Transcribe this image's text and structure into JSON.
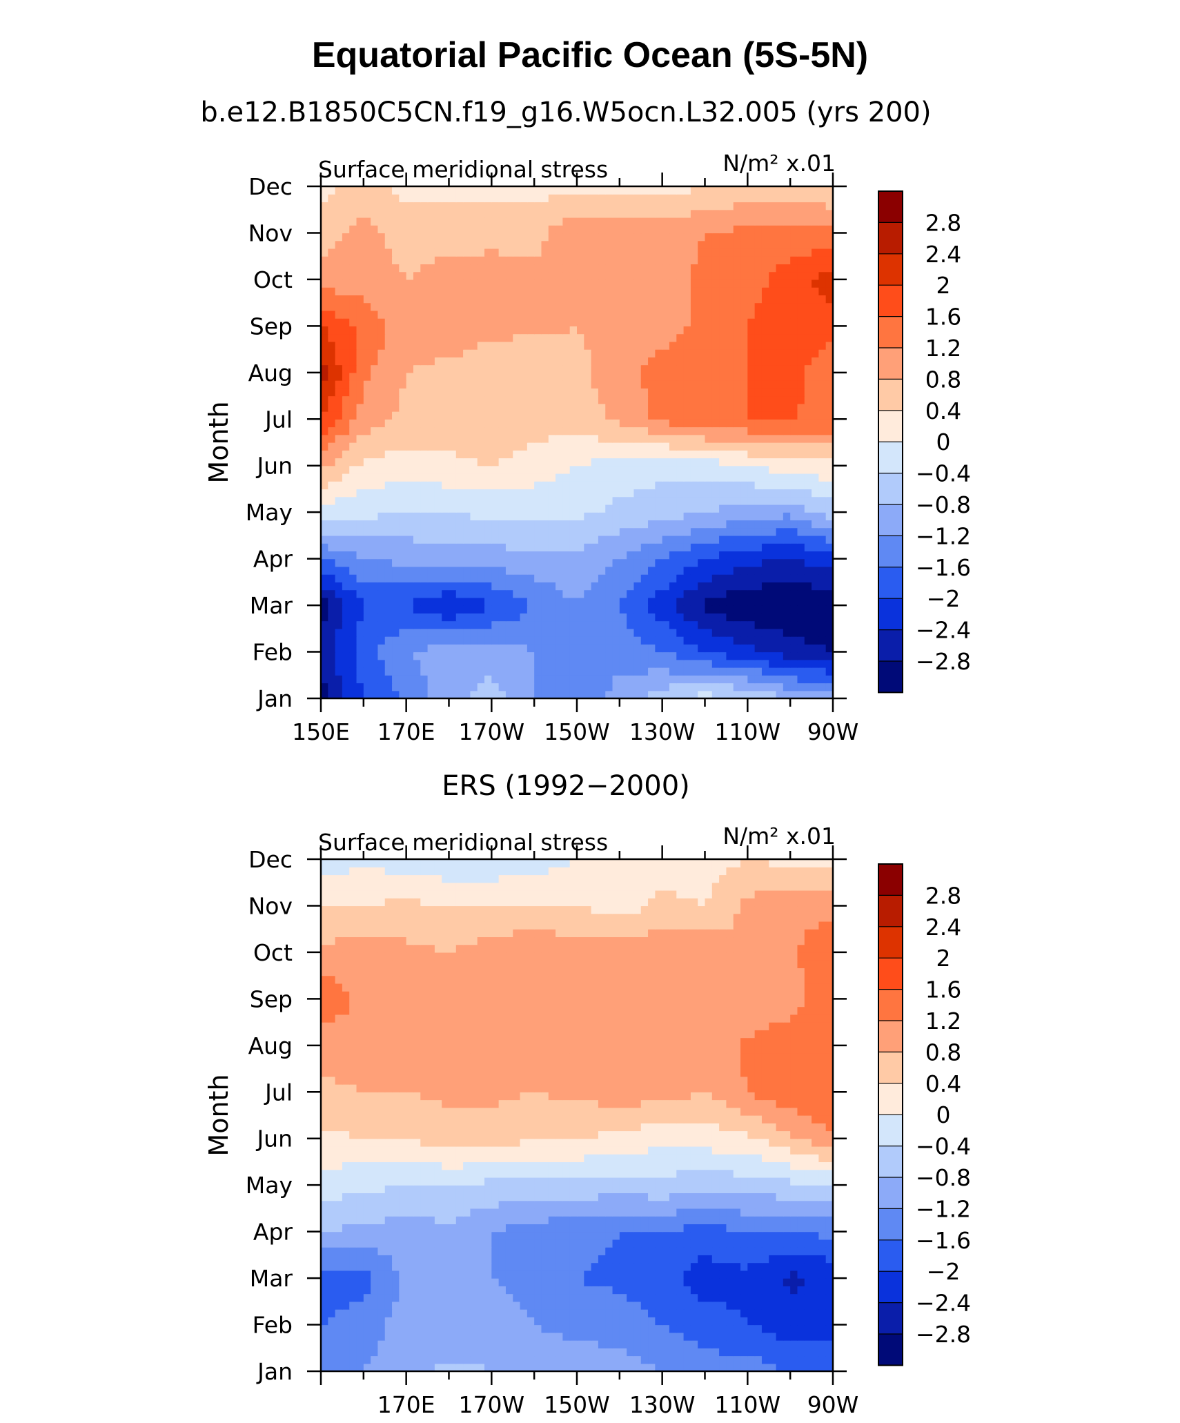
{
  "main_title": "Equatorial Pacific Ocean (5S-5N)",
  "colorbar": {
    "labels": [
      "2.8",
      "2.4",
      "2",
      "1.6",
      "1.2",
      "0.8",
      "0.4",
      "0",
      "−0.4",
      "−0.8",
      "−1.2",
      "−1.6",
      "−2",
      "−2.4",
      "−2.8"
    ],
    "colors": [
      "#8b0000",
      "#b81c00",
      "#dd3300",
      "#ff4d1a",
      "#ff7540",
      "#ffa078",
      "#ffcaa6",
      "#ffebdc",
      "#d3e6fb",
      "#b1cbfb",
      "#8caaf8",
      "#5f89f3",
      "#2a5cf0",
      "#0a32dc",
      "#0a1eaa",
      "#000a78"
    ]
  },
  "chart_data": [
    {
      "type": "heatmap",
      "title": "b.e12.B1850C5CN.f19_g16.W5ocn.L32.005 (yrs 200)",
      "left_label": "Surface meridional stress",
      "right_label": "N/m² x.01",
      "ylabel": "Month",
      "xlabel": "",
      "x_tick_labels": [
        "150E",
        "170E",
        "170W",
        "150W",
        "130W",
        "110W",
        "90W"
      ],
      "y_tick_labels": [
        "Jan",
        "Feb",
        "Mar",
        "Apr",
        "May",
        "Jun",
        "Jul",
        "Aug",
        "Sep",
        "Oct",
        "Nov",
        "Dec"
      ],
      "xlim": [
        150,
        270
      ],
      "ylim": [
        1,
        12
      ],
      "longitudes": [
        150,
        160,
        170,
        180,
        190,
        200,
        210,
        220,
        230,
        240,
        250,
        260,
        270
      ],
      "months": [
        "Jan",
        "Feb",
        "Mar",
        "Apr",
        "May",
        "Jun",
        "Jul",
        "Aug",
        "Sep",
        "Oct",
        "Nov",
        "Dec"
      ],
      "values": [
        [
          -3.0,
          -2.0,
          -1.5,
          -1.0,
          -0.6,
          -1.2,
          -1.6,
          -1.0,
          -0.6,
          -0.2,
          -0.4,
          -0.8,
          -1.0
        ],
        [
          -2.6,
          -1.8,
          -1.2,
          -1.0,
          -1.0,
          -1.2,
          -1.5,
          -1.4,
          -1.6,
          -2.0,
          -2.3,
          -2.6,
          -2.8
        ],
        [
          -3.0,
          -2.0,
          -2.0,
          -2.4,
          -2.0,
          -1.6,
          -1.2,
          -1.6,
          -2.2,
          -2.9,
          -3.1,
          -3.2,
          -3.1
        ],
        [
          -1.6,
          -1.2,
          -1.1,
          -1.0,
          -1.0,
          -0.9,
          -0.9,
          -1.2,
          -1.6,
          -2.0,
          -2.3,
          -2.4,
          -2.2
        ],
        [
          -0.2,
          -0.3,
          -0.4,
          -0.4,
          -0.3,
          -0.3,
          -0.3,
          -0.5,
          -0.6,
          -0.8,
          -1.0,
          -1.1,
          -0.6
        ],
        [
          0.9,
          0.3,
          0.2,
          0.3,
          0.4,
          0.2,
          0.0,
          -0.2,
          -0.3,
          -0.2,
          0.0,
          0.2,
          0.3
        ],
        [
          2.0,
          1.0,
          0.7,
          0.6,
          0.8,
          0.6,
          0.6,
          0.9,
          1.3,
          1.5,
          1.6,
          1.6,
          1.5
        ],
        [
          2.6,
          1.3,
          0.8,
          0.7,
          0.6,
          0.4,
          0.7,
          1.0,
          1.4,
          1.6,
          1.6,
          1.8,
          1.2
        ],
        [
          2.0,
          1.5,
          1.0,
          1.0,
          0.9,
          0.9,
          0.8,
          0.9,
          1.0,
          1.3,
          1.6,
          1.9,
          1.8
        ],
        [
          1.0,
          1.0,
          0.8,
          1.0,
          1.1,
          1.0,
          0.9,
          1.0,
          1.0,
          1.3,
          1.4,
          1.8,
          2.2
        ],
        [
          0.6,
          1.0,
          0.6,
          0.6,
          0.6,
          0.6,
          1.2,
          1.0,
          1.0,
          1.2,
          1.3,
          1.3,
          1.3
        ],
        [
          0.3,
          0.5,
          0.3,
          0.3,
          0.3,
          0.3,
          0.2,
          0.2,
          0.2,
          0.4,
          0.5,
          0.6,
          0.4
        ]
      ]
    },
    {
      "type": "heatmap",
      "title": "ERS (1992−2000)",
      "left_label": "Surface meridional stress",
      "right_label": "N/m² x.01",
      "ylabel": "Month",
      "xlabel": "",
      "x_tick_labels": [
        "170E",
        "170W",
        "150W",
        "130W",
        "110W",
        "90W"
      ],
      "y_tick_labels": [
        "Jan",
        "Feb",
        "Mar",
        "Apr",
        "May",
        "Jun",
        "Jul",
        "Aug",
        "Sep",
        "Oct",
        "Nov",
        "Dec"
      ],
      "xlim": [
        150,
        270
      ],
      "ylim": [
        1,
        12
      ],
      "longitudes": [
        150,
        160,
        170,
        180,
        190,
        200,
        210,
        220,
        230,
        240,
        250,
        260,
        270
      ],
      "months": [
        "Jan",
        "Feb",
        "Mar",
        "Apr",
        "May",
        "Jun",
        "Jul",
        "Aug",
        "Sep",
        "Oct",
        "Nov",
        "Dec"
      ],
      "values": [
        [
          -1.2,
          -1.2,
          -1.0,
          -0.7,
          -0.8,
          -1.0,
          -1.0,
          -1.0,
          -1.2,
          -1.4,
          -1.4,
          -1.6,
          -1.7
        ],
        [
          -1.6,
          -1.4,
          -1.0,
          -1.1,
          -1.0,
          -1.2,
          -1.3,
          -1.4,
          -1.6,
          -1.8,
          -2.0,
          -2.2,
          -2.2
        ],
        [
          -1.8,
          -1.8,
          -1.1,
          -1.1,
          -1.2,
          -1.4,
          -1.6,
          -1.7,
          -1.8,
          -2.2,
          -2.1,
          -2.5,
          -2.3
        ],
        [
          -0.8,
          -0.9,
          -1.0,
          -0.9,
          -1.2,
          -1.4,
          -1.5,
          -1.6,
          -1.6,
          -1.8,
          -1.6,
          -1.6,
          -1.5
        ],
        [
          -0.2,
          -0.3,
          -0.4,
          -0.4,
          -0.5,
          -0.5,
          -0.5,
          -0.6,
          -0.5,
          -0.7,
          -0.6,
          -0.5,
          -0.4
        ],
        [
          0.3,
          0.4,
          0.4,
          0.6,
          0.6,
          0.4,
          0.4,
          0.3,
          0.1,
          0.2,
          0.3,
          0.7,
          1.2
        ],
        [
          0.7,
          0.8,
          0.8,
          0.9,
          0.9,
          0.8,
          0.9,
          1.0,
          1.0,
          0.8,
          1.2,
          1.5,
          1.5
        ],
        [
          1.0,
          1.0,
          0.9,
          0.9,
          1.0,
          1.2,
          1.1,
          1.0,
          1.0,
          0.8,
          1.3,
          1.5,
          1.6
        ],
        [
          1.5,
          1.1,
          1.0,
          1.0,
          1.1,
          1.1,
          1.0,
          1.0,
          1.0,
          1.0,
          0.8,
          1.0,
          1.5
        ],
        [
          0.9,
          1.0,
          0.9,
          0.8,
          1.0,
          1.2,
          1.0,
          1.0,
          1.1,
          1.1,
          0.8,
          1.1,
          1.6
        ],
        [
          0.4,
          0.4,
          0.5,
          0.4,
          0.4,
          0.4,
          0.4,
          0.2,
          0.5,
          0.4,
          0.9,
          1.1,
          1.0
        ],
        [
          -0.2,
          -0.1,
          -0.2,
          -0.3,
          -0.3,
          -0.2,
          0.0,
          0.1,
          0.2,
          0.2,
          0.4,
          0.3,
          0.2
        ]
      ]
    }
  ]
}
